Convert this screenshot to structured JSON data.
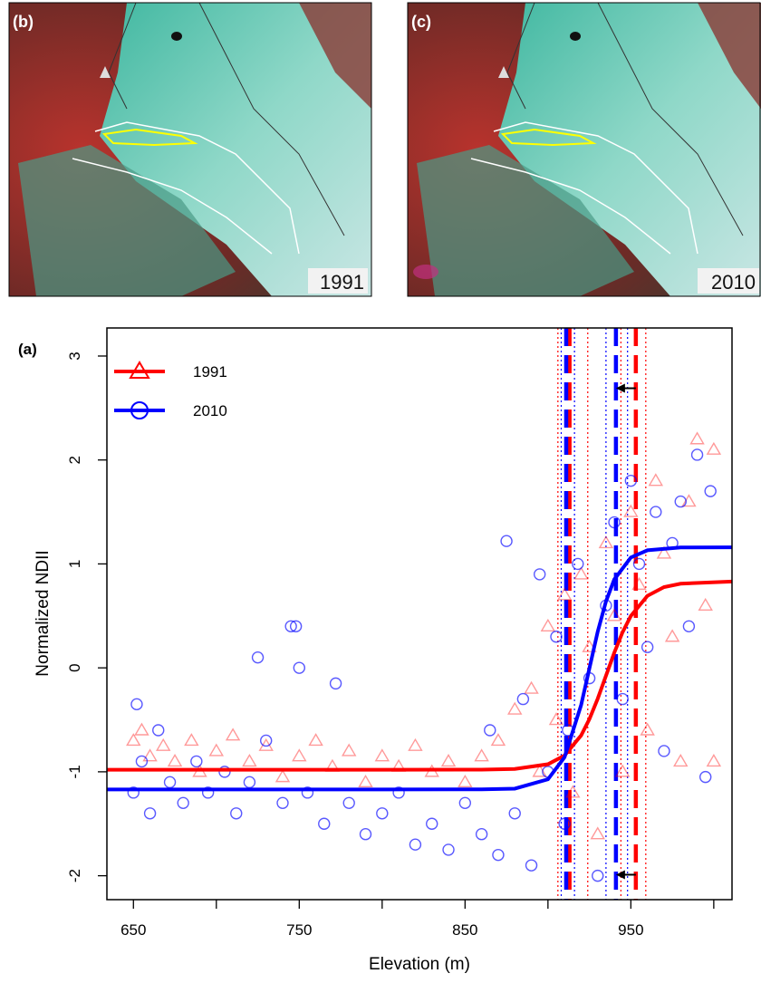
{
  "images": [
    {
      "label": "(b)",
      "year": "1991"
    },
    {
      "label": "(c)",
      "year": "2010"
    }
  ],
  "chart_data": {
    "type": "scatter",
    "panel_label": "(a)",
    "xlabel": "Elevation (m)",
    "ylabel": "Normalized NDII",
    "xlim": [
      634,
      1011
    ],
    "xticks": [
      650,
      750,
      850,
      950
    ],
    "xminor_ticks": [
      700,
      800,
      900,
      1000
    ],
    "ylim": [
      -2.23,
      3.27
    ],
    "yticks": [
      -2,
      -1,
      0,
      1,
      2,
      3
    ],
    "legend": "top-left",
    "series": [
      {
        "name": "1991",
        "color": "#ff0000",
        "marker": "triangle",
        "x": [
          650,
          655,
          660,
          668,
          675,
          685,
          690,
          700,
          710,
          720,
          730,
          740,
          750,
          760,
          770,
          780,
          790,
          800,
          810,
          820,
          830,
          840,
          850,
          860,
          870,
          880,
          890,
          895,
          900,
          905,
          910,
          915,
          920,
          925,
          930,
          935,
          940,
          945,
          950,
          955,
          960,
          965,
          970,
          975,
          980,
          985,
          990,
          995,
          1000,
          1000
        ],
        "values": [
          -0.7,
          -0.6,
          -0.85,
          -0.75,
          -0.9,
          -0.7,
          -1.0,
          -0.8,
          -0.65,
          -0.9,
          -0.75,
          -1.05,
          -0.85,
          -0.7,
          -0.95,
          -0.8,
          -1.1,
          -0.85,
          -0.95,
          -0.75,
          -1.0,
          -0.9,
          -1.1,
          -0.85,
          -0.7,
          -0.4,
          -0.2,
          -1.0,
          0.4,
          -0.5,
          0.7,
          -1.2,
          0.9,
          0.2,
          -1.6,
          1.2,
          0.5,
          -1.0,
          1.5,
          0.8,
          -0.6,
          1.8,
          1.1,
          0.3,
          -0.9,
          1.6,
          2.2,
          0.6,
          -0.9,
          2.1
        ],
        "fit_x": [
          634,
          700,
          800,
          860,
          880,
          900,
          910,
          920,
          925,
          930,
          935,
          940,
          945,
          950,
          960,
          970,
          980,
          1011
        ],
        "fit_values": [
          -0.98,
          -0.98,
          -0.98,
          -0.979,
          -0.973,
          -0.927,
          -0.843,
          -0.65,
          -0.493,
          -0.297,
          -0.075,
          0.146,
          0.343,
          0.5,
          0.693,
          0.777,
          0.81,
          0.83
        ]
      },
      {
        "name": "2010",
        "color": "#0000ff",
        "marker": "circle",
        "x": [
          650,
          652,
          655,
          660,
          665,
          672,
          680,
          688,
          695,
          705,
          712,
          720,
          725,
          730,
          740,
          745,
          748,
          750,
          755,
          765,
          772,
          780,
          790,
          800,
          810,
          820,
          830,
          840,
          850,
          860,
          865,
          870,
          875,
          880,
          885,
          890,
          895,
          900,
          905,
          910,
          912,
          918,
          925,
          930,
          935,
          940,
          945,
          950,
          955,
          960,
          965,
          970,
          975,
          980,
          985,
          990,
          995,
          998
        ],
        "values": [
          -1.2,
          -0.35,
          -0.9,
          -1.4,
          -0.6,
          -1.1,
          -1.3,
          -0.9,
          -1.2,
          -1.0,
          -1.4,
          -1.1,
          0.1,
          -0.7,
          -1.3,
          0.4,
          0.4,
          0.0,
          -1.2,
          -1.5,
          -0.15,
          -1.3,
          -1.6,
          -1.4,
          -1.2,
          -1.7,
          -1.5,
          -1.75,
          -1.3,
          -1.6,
          -0.6,
          -1.8,
          1.22,
          -1.4,
          -0.3,
          -1.9,
          0.9,
          -1.0,
          0.3,
          -1.5,
          -0.6,
          1.0,
          -0.1,
          -2.0,
          0.6,
          1.4,
          -0.3,
          1.8,
          1.0,
          0.2,
          1.5,
          -0.8,
          1.2,
          1.6,
          0.4,
          2.05,
          -1.05,
          1.7
        ],
        "fit_x": [
          634,
          700,
          800,
          860,
          880,
          900,
          910,
          920,
          925,
          930,
          935,
          940,
          950,
          960,
          980,
          1011
        ],
        "fit_values": [
          -1.17,
          -1.17,
          -1.17,
          -1.169,
          -1.162,
          -1.072,
          -0.86,
          -0.358,
          -0.005,
          0.348,
          0.64,
          0.851,
          1.062,
          1.131,
          1.158,
          1.16
        ]
      }
    ],
    "thresholds": [
      {
        "color": "#ff0000",
        "x": 913,
        "style": "dashed"
      },
      {
        "color": "#ff0000",
        "x": 953,
        "style": "dashed"
      },
      {
        "color": "#0000ff",
        "x": 911,
        "style": "dashed"
      },
      {
        "color": "#0000ff",
        "x": 941,
        "style": "dashed"
      },
      {
        "color": "#ff0000",
        "x": 906,
        "style": "dotted"
      },
      {
        "color": "#ff0000",
        "x": 924,
        "style": "dotted"
      },
      {
        "color": "#ff0000",
        "x": 944,
        "style": "dotted"
      },
      {
        "color": "#ff0000",
        "x": 959,
        "style": "dotted"
      },
      {
        "color": "#0000ff",
        "x": 908,
        "style": "dotted"
      },
      {
        "color": "#0000ff",
        "x": 916,
        "style": "dotted"
      },
      {
        "color": "#0000ff",
        "x": 935,
        "style": "dotted"
      },
      {
        "color": "#0000ff",
        "x": 948,
        "style": "dotted"
      }
    ],
    "arrows": [
      {
        "x": [
          953,
          941
        ],
        "y": 2.69
      },
      {
        "x": [
          953,
          941
        ],
        "y": -1.99
      }
    ]
  }
}
